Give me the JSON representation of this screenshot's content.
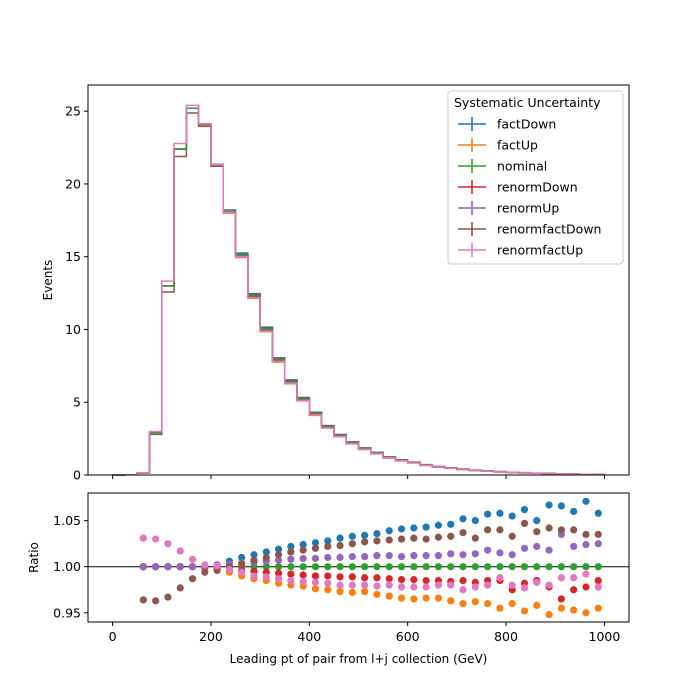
{
  "chart_data": {
    "type": "line",
    "title": "",
    "bin_edges": [
      0,
      25,
      50,
      75,
      100,
      125,
      150,
      175,
      200,
      225,
      250,
      275,
      300,
      325,
      350,
      375,
      400,
      425,
      450,
      475,
      500,
      525,
      550,
      575,
      600,
      625,
      650,
      675,
      700,
      725,
      750,
      775,
      800,
      825,
      850,
      875,
      900,
      925,
      950,
      975,
      1000
    ],
    "series_colors": [
      "#1f77b4",
      "#ff7f0e",
      "#2ca02c",
      "#d62728",
      "#9467bd",
      "#8c564b",
      "#e377c2"
    ],
    "legend": {
      "title": "Systematic Uncertainty",
      "placement": "upper right",
      "entries": [
        "factDown",
        "factUp",
        "nominal",
        "renormDown",
        "renormUp",
        "renormfactDown",
        "renormfactUp"
      ]
    },
    "main_panel": {
      "ylabel": "Events",
      "ylim": [
        0,
        26.8
      ],
      "yticks": [
        "0",
        "5",
        "10",
        "15",
        "20",
        "25"
      ],
      "ytick_values": [
        0,
        5,
        10,
        15,
        20,
        25
      ],
      "nominal": [
        0.0,
        0.02,
        0.15,
        2.9,
        13.0,
        22.4,
        25.2,
        24.1,
        21.3,
        18.1,
        15.1,
        12.3,
        10.0,
        7.9,
        6.4,
        5.2,
        4.2,
        3.3,
        2.7,
        2.2,
        1.8,
        1.5,
        1.2,
        1.0,
        0.85,
        0.68,
        0.56,
        0.47,
        0.39,
        0.32,
        0.27,
        0.22,
        0.18,
        0.15,
        0.12,
        0.1,
        0.08,
        0.06,
        0.05,
        0.04
      ]
    },
    "ratio_panel": {
      "ylabel": "Ratio",
      "ylim": [
        0.94,
        1.08
      ],
      "yticks": [
        "0.95",
        "1.00",
        "1.05"
      ],
      "ytick_values": [
        0.95,
        1.0,
        1.05
      ],
      "reference_line": 1.0,
      "x_points": [
        62.5,
        87.5,
        112.5,
        137.5,
        162.5,
        187.5,
        212.5,
        237.5,
        262.5,
        287.5,
        312.5,
        337.5,
        362.5,
        387.5,
        412.5,
        437.5,
        462.5,
        487.5,
        512.5,
        537.5,
        562.5,
        587.5,
        612.5,
        637.5,
        662.5,
        687.5,
        712.5,
        737.5,
        762.5,
        787.5,
        812.5,
        837.5,
        862.5,
        887.5,
        912.5,
        937.5,
        962.5,
        987.5
      ],
      "series": [
        {
          "name": "factDown",
          "values": [
            1.0,
            1.0,
            1.0,
            1.0,
            1.0,
            1.0,
            1.002,
            1.006,
            1.01,
            1.013,
            1.016,
            1.019,
            1.022,
            1.024,
            1.026,
            1.028,
            1.031,
            1.033,
            1.034,
            1.036,
            1.039,
            1.041,
            1.042,
            1.043,
            1.045,
            1.046,
            1.052,
            1.05,
            1.057,
            1.058,
            1.055,
            1.062,
            1.05,
            1.067,
            1.066,
            1.06,
            1.071,
            1.058
          ]
        },
        {
          "name": "factUp",
          "values": [
            1.0,
            1.0,
            1.0,
            1.0,
            1.0,
            1.0,
            0.998,
            0.994,
            0.99,
            0.987,
            0.985,
            0.982,
            0.98,
            0.979,
            0.976,
            0.975,
            0.973,
            0.972,
            0.973,
            0.97,
            0.968,
            0.966,
            0.965,
            0.966,
            0.966,
            0.963,
            0.96,
            0.962,
            0.96,
            0.955,
            0.96,
            0.952,
            0.958,
            0.948,
            0.955,
            0.953,
            0.95,
            0.955
          ]
        },
        {
          "name": "nominal",
          "values": [
            1.0,
            1.0,
            1.0,
            1.0,
            1.0,
            1.0,
            1.0,
            1.0,
            1.0,
            1.0,
            1.0,
            1.0,
            1.0,
            1.0,
            1.0,
            1.0,
            1.0,
            1.0,
            1.0,
            1.0,
            1.0,
            1.0,
            1.0,
            1.0,
            1.0,
            1.0,
            1.0,
            1.0,
            1.0,
            1.0,
            1.0,
            1.0,
            1.0,
            1.0,
            1.0,
            1.0,
            1.0,
            1.0
          ]
        },
        {
          "name": "renormDown",
          "values": [
            1.0,
            1.0,
            1.0,
            1.0,
            1.0,
            0.999,
            0.998,
            0.997,
            0.996,
            0.995,
            0.994,
            0.993,
            0.992,
            0.991,
            0.99,
            0.99,
            0.989,
            0.989,
            0.988,
            0.988,
            0.987,
            0.986,
            0.986,
            0.985,
            0.985,
            0.984,
            0.985,
            0.983,
            0.985,
            0.985,
            0.975,
            0.982,
            0.985,
            0.978,
            0.965,
            0.975,
            0.978,
            0.985
          ]
        },
        {
          "name": "renormUp",
          "values": [
            1.0,
            1.0,
            1.0,
            1.0,
            1.0,
            1.001,
            1.002,
            1.003,
            1.004,
            1.005,
            1.006,
            1.007,
            1.008,
            1.009,
            1.009,
            1.01,
            1.01,
            1.011,
            1.011,
            1.012,
            1.012,
            1.011,
            1.012,
            1.012,
            1.012,
            1.014,
            1.013,
            1.014,
            1.018,
            1.015,
            1.013,
            1.02,
            1.022,
            1.018,
            1.035,
            1.022,
            1.024,
            1.025
          ]
        },
        {
          "name": "renormfactDown",
          "values": [
            0.964,
            0.963,
            0.967,
            0.977,
            0.987,
            0.994,
            0.996,
            1.0,
            1.003,
            1.007,
            1.01,
            1.013,
            1.016,
            1.018,
            1.02,
            1.022,
            1.023,
            1.025,
            1.027,
            1.028,
            1.029,
            1.03,
            1.031,
            1.03,
            1.032,
            1.033,
            1.037,
            1.031,
            1.04,
            1.04,
            1.033,
            1.047,
            1.038,
            1.042,
            1.04,
            1.04,
            1.035,
            1.035
          ]
        },
        {
          "name": "renormfactUp",
          "values": [
            1.031,
            1.03,
            1.025,
            1.017,
            1.008,
            1.002,
            1.001,
            0.997,
            0.994,
            0.99,
            0.989,
            0.987,
            0.985,
            0.984,
            0.983,
            0.982,
            0.98,
            0.98,
            0.98,
            0.979,
            0.98,
            0.978,
            0.978,
            0.978,
            0.98,
            0.98,
            0.975,
            0.978,
            0.98,
            0.988,
            0.98,
            0.977,
            0.983,
            0.98,
            0.988,
            0.988,
            0.992,
            0.978
          ]
        }
      ]
    },
    "xlabel": "Leading pt of pair from l+j collection (GeV)",
    "xlim": [
      -50,
      1050
    ],
    "xticks": [
      "0",
      "200",
      "400",
      "600",
      "800",
      "1000"
    ],
    "xtick_values": [
      0,
      200,
      400,
      600,
      800,
      1000
    ],
    "grid": false
  }
}
